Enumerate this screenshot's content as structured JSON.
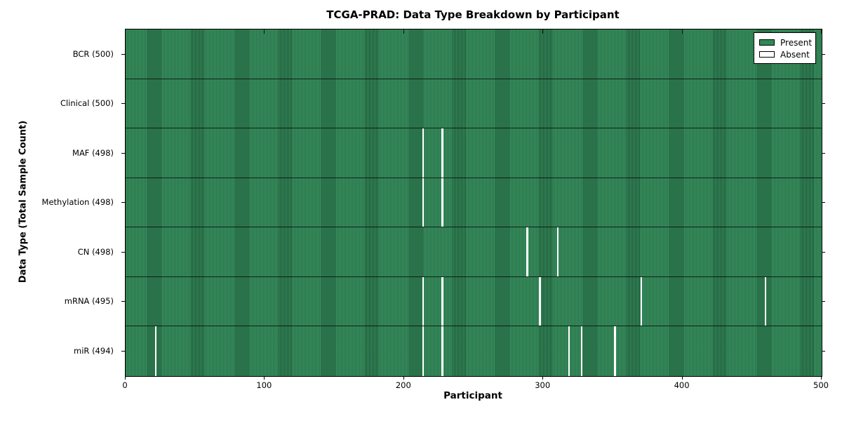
{
  "figure": {
    "title": "TCGA-PRAD: Data Type Breakdown by Participant",
    "xlabel": "Participant",
    "ylabel": "Data Type (Total Sample Count)"
  },
  "legend": {
    "items": [
      {
        "label": "Present",
        "color": "#2E8B57"
      },
      {
        "label": "Absent",
        "color": "#FFFFFF"
      }
    ]
  },
  "colors": {
    "present_fill": "#2E8B57",
    "bar_edge_stripe": "rgba(0,0,0,0.40)",
    "absent_fill": "#FFFFFF",
    "row_separator": "rgba(0,0,0,0.72)",
    "frame": "#000000"
  },
  "chart_data": {
    "type": "heatmap",
    "title": "TCGA-PRAD: Data Type Breakdown by Participant",
    "xlabel": "Participant",
    "ylabel": "Data Type (Total Sample Count)",
    "xlim": [
      0,
      500
    ],
    "x_ticks": [
      0,
      100,
      200,
      300,
      400,
      500
    ],
    "n_participants": 500,
    "grid": false,
    "legend": [
      "Present",
      "Absent"
    ],
    "legend_position": "upper right",
    "cell_values": "1 = data type present for participant (green), 0 = absent (white)",
    "rows": [
      {
        "name": "BCR",
        "label": "BCR (500)",
        "total": 500,
        "absent_participants": []
      },
      {
        "name": "Clinical",
        "label": "Clinical (500)",
        "total": 500,
        "absent_participants": []
      },
      {
        "name": "MAF",
        "label": "MAF (498)",
        "total": 498,
        "absent_participants": [
          213,
          227
        ]
      },
      {
        "name": "Methylation",
        "label": "Methylation (498)",
        "total": 498,
        "absent_participants": [
          213,
          227
        ]
      },
      {
        "name": "CN",
        "label": "CN (498)",
        "total": 498,
        "absent_participants": [
          288,
          310
        ]
      },
      {
        "name": "mRNA",
        "label": "mRNA (495)",
        "total": 495,
        "absent_participants": [
          213,
          227,
          297,
          370,
          459
        ]
      },
      {
        "name": "miR",
        "label": "miR (494)",
        "total": 494,
        "absent_participants": [
          21,
          213,
          227,
          318,
          327,
          351
        ]
      }
    ]
  }
}
